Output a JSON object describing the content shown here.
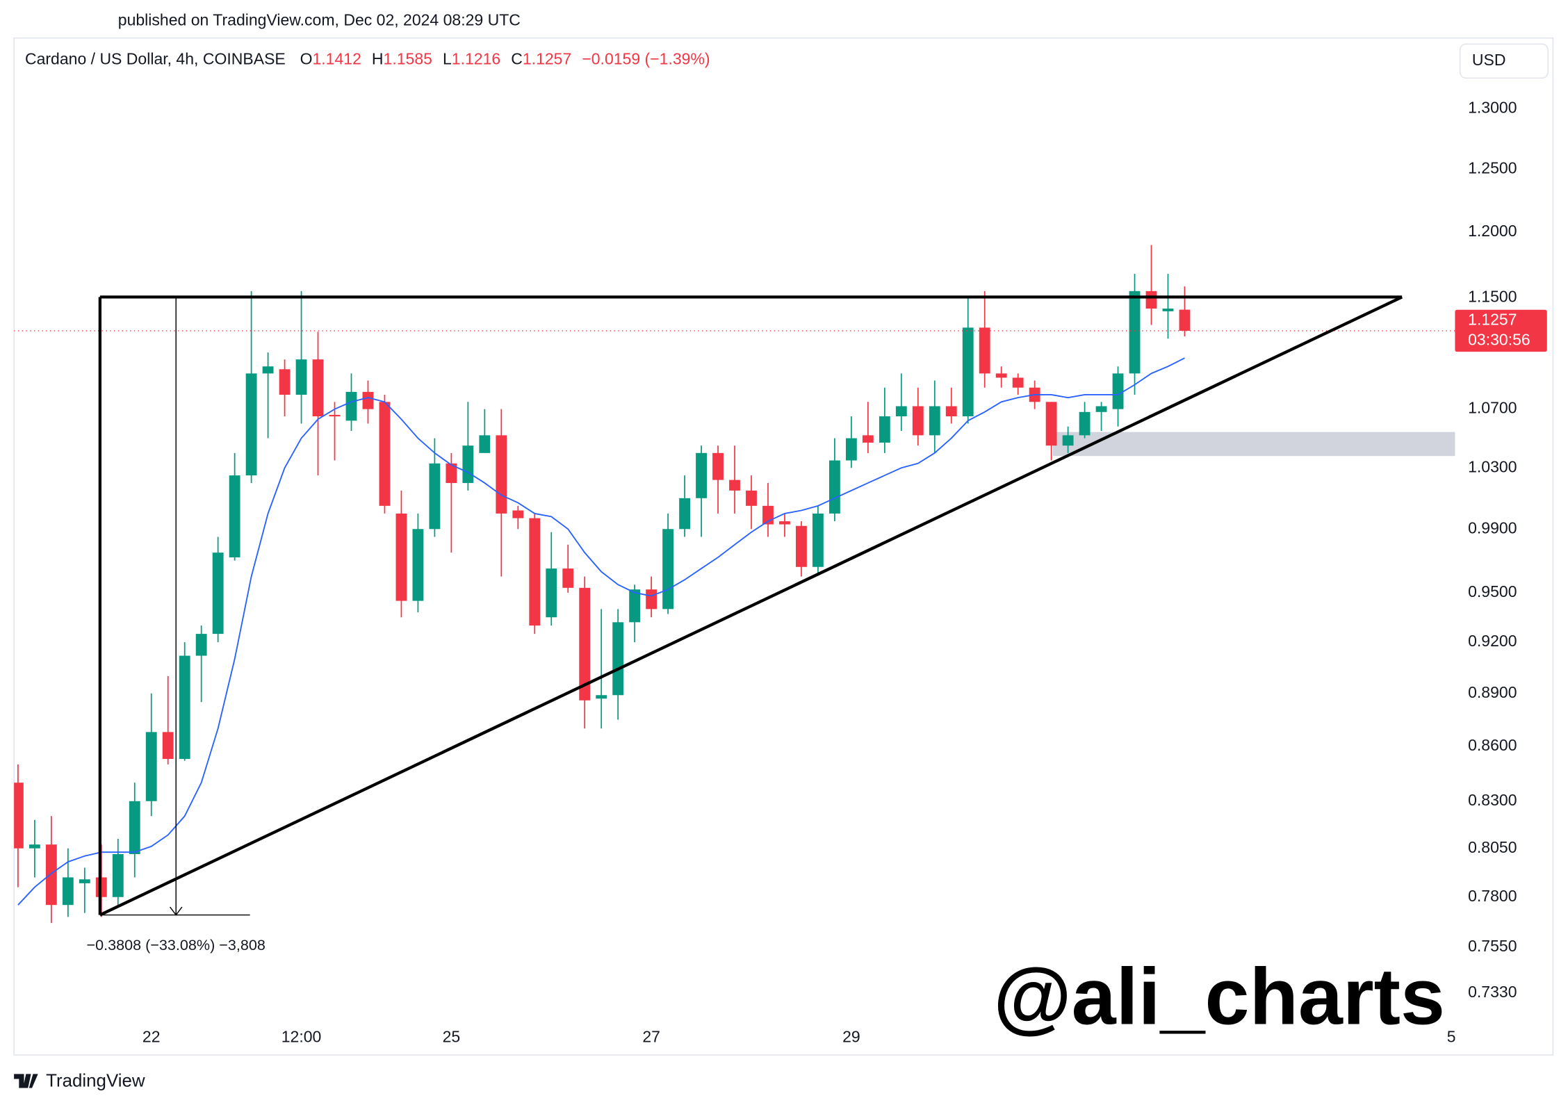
{
  "header": {
    "published": "published on TradingView.com, Dec 02, 2024 08:29 UTC"
  },
  "chart_data": {
    "type": "candlestick",
    "title": "Cardano / US Dollar, 4h, COINBASE",
    "ohlc_labels": [
      "O",
      "H",
      "L",
      "C"
    ],
    "change": "−0.0159 (−1.39%)",
    "currency": "USD",
    "countdown": "03:30:56",
    "measure_label": "−0.3808 (−33.08%) −3,808",
    "watermark": "@ali_charts",
    "up_color": "#089981",
    "down_color": "#f23645",
    "log_scale": true,
    "grid": false,
    "open": [
      0.84,
      0.805,
      0.807,
      0.776,
      0.787,
      0.79,
      0.78,
      0.802,
      0.83,
      0.868,
      0.853,
      0.912,
      0.925,
      0.972,
      1.025,
      1.095,
      1.098,
      1.08,
      1.105,
      1.066,
      1.062,
      1.082,
      1.075,
      1.0,
      0.945,
      0.99,
      1.033,
      1.02,
      1.04,
      1.052,
      1.002,
      0.997,
      0.935,
      0.965,
      0.953,
      0.887,
      0.889,
      0.932,
      0.952,
      0.94,
      0.99,
      1.01,
      1.04,
      1.022,
      1.015,
      1.005,
      0.995,
      0.992,
      0.966,
      1.0,
      1.035,
      1.052,
      1.047,
      1.065,
      1.072,
      1.052,
      1.072,
      1.065,
      1.128,
      1.095,
      1.092,
      1.085,
      1.075,
      1.045,
      1.052,
      1.068,
      1.07,
      1.095,
      1.155,
      1.14,
      1.1412
    ],
    "high": [
      0.85,
      0.82,
      0.822,
      0.805,
      0.795,
      0.807,
      0.81,
      0.84,
      0.89,
      0.9,
      0.92,
      0.93,
      0.985,
      1.04,
      1.155,
      1.11,
      1.105,
      1.155,
      1.125,
      1.075,
      1.095,
      1.09,
      1.08,
      1.015,
      1.0,
      1.05,
      1.04,
      1.075,
      1.07,
      1.07,
      1.005,
      1.0,
      0.988,
      0.98,
      0.96,
      0.94,
      0.94,
      0.955,
      0.96,
      1.0,
      1.025,
      1.045,
      1.045,
      1.045,
      1.025,
      1.02,
      1.0,
      0.995,
      1.005,
      1.05,
      1.065,
      1.075,
      1.085,
      1.095,
      1.085,
      1.09,
      1.085,
      1.15,
      1.155,
      1.1,
      1.095,
      1.09,
      1.075,
      1.058,
      1.075,
      1.075,
      1.1,
      1.168,
      1.19,
      1.168,
      1.1585
    ],
    "low": [
      0.785,
      0.79,
      0.767,
      0.77,
      0.772,
      0.77,
      0.775,
      0.79,
      0.822,
      0.85,
      0.852,
      0.885,
      0.92,
      0.97,
      1.02,
      1.05,
      1.065,
      1.06,
      1.025,
      1.035,
      1.055,
      1.06,
      1.0,
      0.935,
      0.938,
      0.985,
      0.975,
      1.015,
      1.04,
      0.96,
      0.99,
      0.925,
      0.93,
      0.95,
      0.87,
      0.87,
      0.875,
      0.92,
      0.935,
      0.937,
      0.985,
      0.985,
      1.0,
      1.0,
      0.99,
      0.985,
      0.985,
      0.96,
      0.962,
      0.995,
      1.03,
      1.04,
      1.04,
      1.055,
      1.045,
      1.04,
      1.06,
      1.06,
      1.085,
      1.085,
      1.08,
      1.07,
      1.035,
      1.04,
      1.05,
      1.055,
      1.058,
      1.08,
      1.13,
      1.12,
      1.1216
    ],
    "close": [
      0.805,
      0.807,
      0.776,
      0.79,
      0.789,
      0.78,
      0.802,
      0.83,
      0.868,
      0.853,
      0.912,
      0.925,
      0.975,
      1.025,
      1.095,
      1.1,
      1.08,
      1.105,
      1.065,
      1.065,
      1.082,
      1.07,
      1.005,
      0.945,
      0.99,
      1.033,
      1.02,
      1.045,
      1.052,
      1.0,
      0.997,
      0.93,
      0.965,
      0.953,
      0.886,
      0.889,
      0.932,
      0.952,
      0.94,
      0.99,
      1.01,
      1.04,
      1.022,
      1.015,
      1.005,
      0.993,
      0.993,
      0.966,
      1.0,
      1.035,
      1.05,
      1.047,
      1.065,
      1.072,
      1.052,
      1.072,
      1.065,
      1.128,
      1.095,
      1.092,
      1.085,
      1.075,
      1.045,
      1.052,
      1.068,
      1.072,
      1.095,
      1.155,
      1.142,
      1.142,
      1.1257
    ],
    "ma": {
      "color": "#2962ff",
      "values": [
        0.776,
        0.785,
        0.792,
        0.798,
        0.801,
        0.803,
        0.803,
        0.803,
        0.806,
        0.812,
        0.822,
        0.84,
        0.87,
        0.91,
        0.96,
        1.0,
        1.03,
        1.05,
        1.063,
        1.07,
        1.075,
        1.078,
        1.075,
        1.063,
        1.05,
        1.04,
        1.032,
        1.027,
        1.02,
        1.012,
        1.007,
        1.0,
        0.998,
        0.99,
        0.975,
        0.963,
        0.955,
        0.95,
        0.948,
        0.952,
        0.958,
        0.965,
        0.972,
        0.98,
        0.988,
        0.995,
        1.0,
        1.002,
        1.005,
        1.01,
        1.015,
        1.02,
        1.025,
        1.03,
        1.033,
        1.04,
        1.05,
        1.062,
        1.068,
        1.075,
        1.078,
        1.08,
        1.08,
        1.078,
        1.08,
        1.08,
        1.08,
        1.087,
        1.095,
        1.1,
        1.106
      ]
    },
    "xlim": [
      -0.24,
      86.22
    ],
    "xticks": [
      {
        "value": 8,
        "label": "22"
      },
      {
        "value": 17,
        "label": "12:00"
      },
      {
        "value": 26,
        "label": "25"
      },
      {
        "value": 38,
        "label": "27"
      },
      {
        "value": 50,
        "label": "29"
      },
      {
        "value": 86,
        "label": "5"
      }
    ],
    "ylim": [
      0.7203,
      1.359
    ],
    "yticks": [
      {
        "value": 1.3,
        "label": "1.3000"
      },
      {
        "value": 1.25,
        "label": "1.2500"
      },
      {
        "value": 1.2,
        "label": "1.2000"
      },
      {
        "value": 1.15,
        "label": "1.1500"
      },
      {
        "value": 1.07,
        "label": "1.0700"
      },
      {
        "value": 1.03,
        "label": "1.0300"
      },
      {
        "value": 0.99,
        "label": "0.9900"
      },
      {
        "value": 0.95,
        "label": "0.9500"
      },
      {
        "value": 0.92,
        "label": "0.9200"
      },
      {
        "value": 0.89,
        "label": "0.8900"
      },
      {
        "value": 0.86,
        "label": "0.8600"
      },
      {
        "value": 0.83,
        "label": "0.8300"
      },
      {
        "value": 0.805,
        "label": "0.8050"
      },
      {
        "value": 0.78,
        "label": "0.7800"
      },
      {
        "value": 0.755,
        "label": "0.7550"
      },
      {
        "value": 0.733,
        "label": "0.7330"
      }
    ]
  },
  "footer": {
    "brand": "TradingView"
  }
}
